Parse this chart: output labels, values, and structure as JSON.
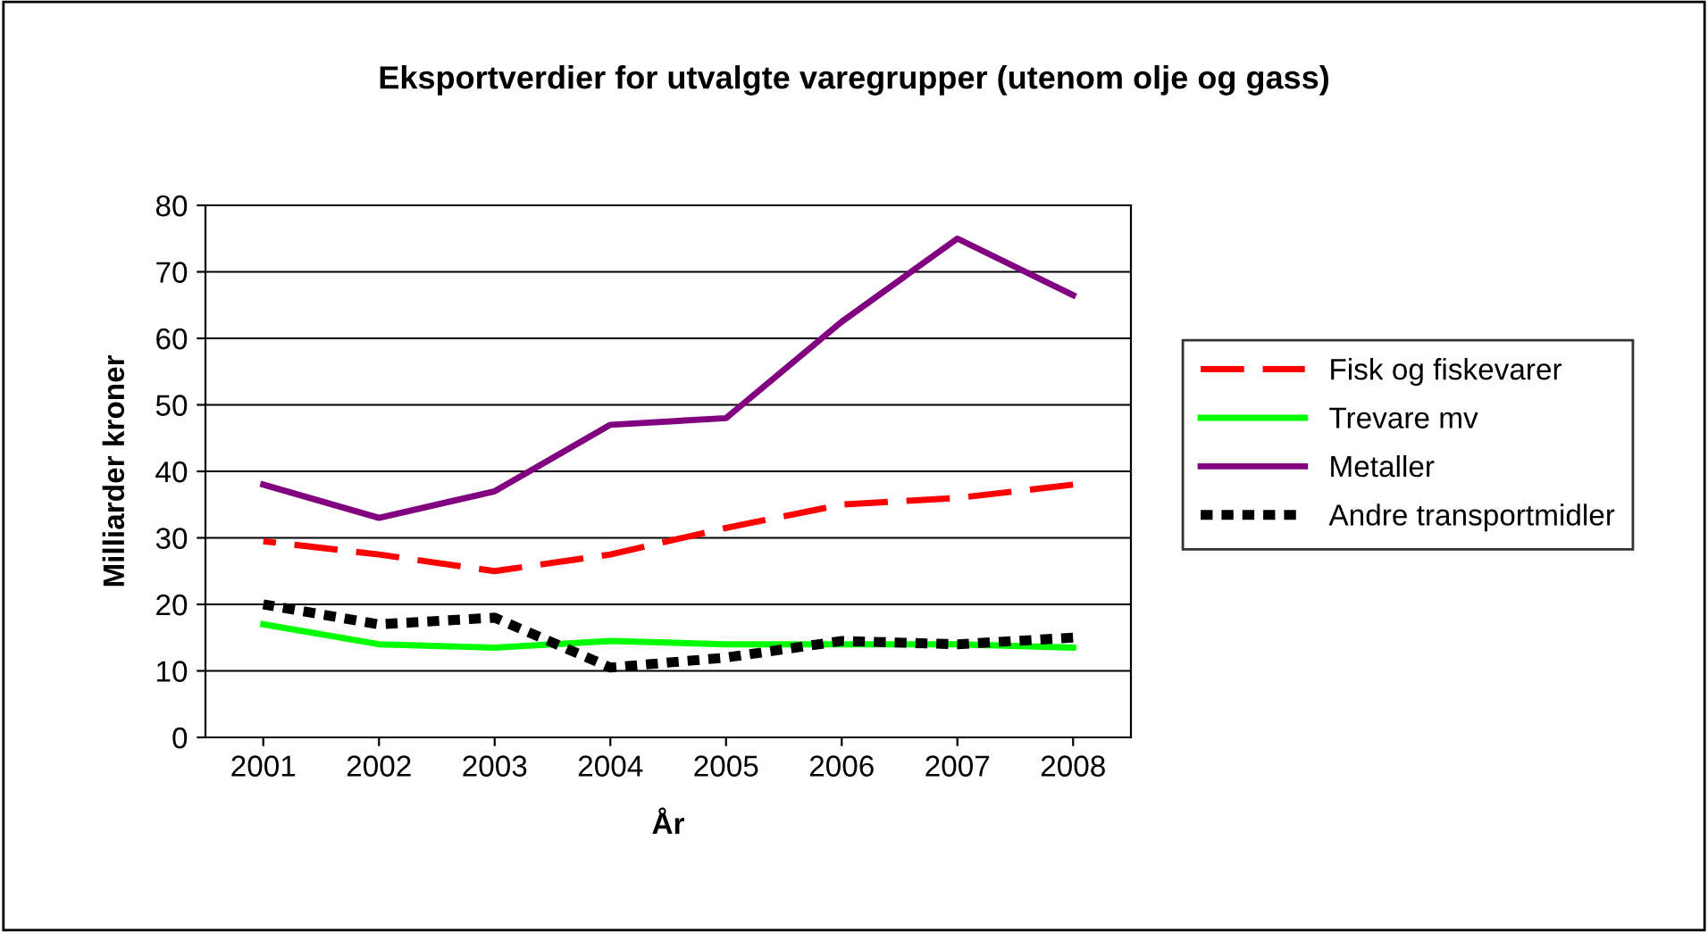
{
  "chart_data": {
    "type": "line",
    "title": "Eksportverdier for utvalgte varegrupper (utenom olje og gass)",
    "xlabel": "År",
    "ylabel": "Milliarder kroner",
    "categories": [
      "2001",
      "2002",
      "2003",
      "2004",
      "2005",
      "2006",
      "2007",
      "2008"
    ],
    "series": [
      {
        "name": "Fisk og fiskevarer",
        "color": "#ff0000",
        "line_style": "dashed",
        "values": [
          29.5,
          27.5,
          25,
          27.5,
          31.5,
          35,
          36,
          38
        ]
      },
      {
        "name": "Trevare mv",
        "color": "#00ff00",
        "line_style": "solid",
        "values": [
          17,
          14,
          13.5,
          14.5,
          14,
          14,
          14,
          13.5
        ]
      },
      {
        "name": "Metaller",
        "color": "#800080",
        "line_style": "solid",
        "values": [
          38,
          33,
          37,
          47,
          48,
          62.5,
          75,
          66.5
        ]
      },
      {
        "name": "Andre transportmidler",
        "color": "#000000",
        "line_style": "dotted",
        "values": [
          20,
          17,
          18,
          10.5,
          12,
          14.5,
          14,
          15
        ]
      }
    ],
    "ylim": [
      0,
      80
    ],
    "yticks": [
      0,
      10,
      20,
      30,
      40,
      50,
      60,
      70,
      80
    ],
    "grid": "y",
    "legend": "right"
  }
}
